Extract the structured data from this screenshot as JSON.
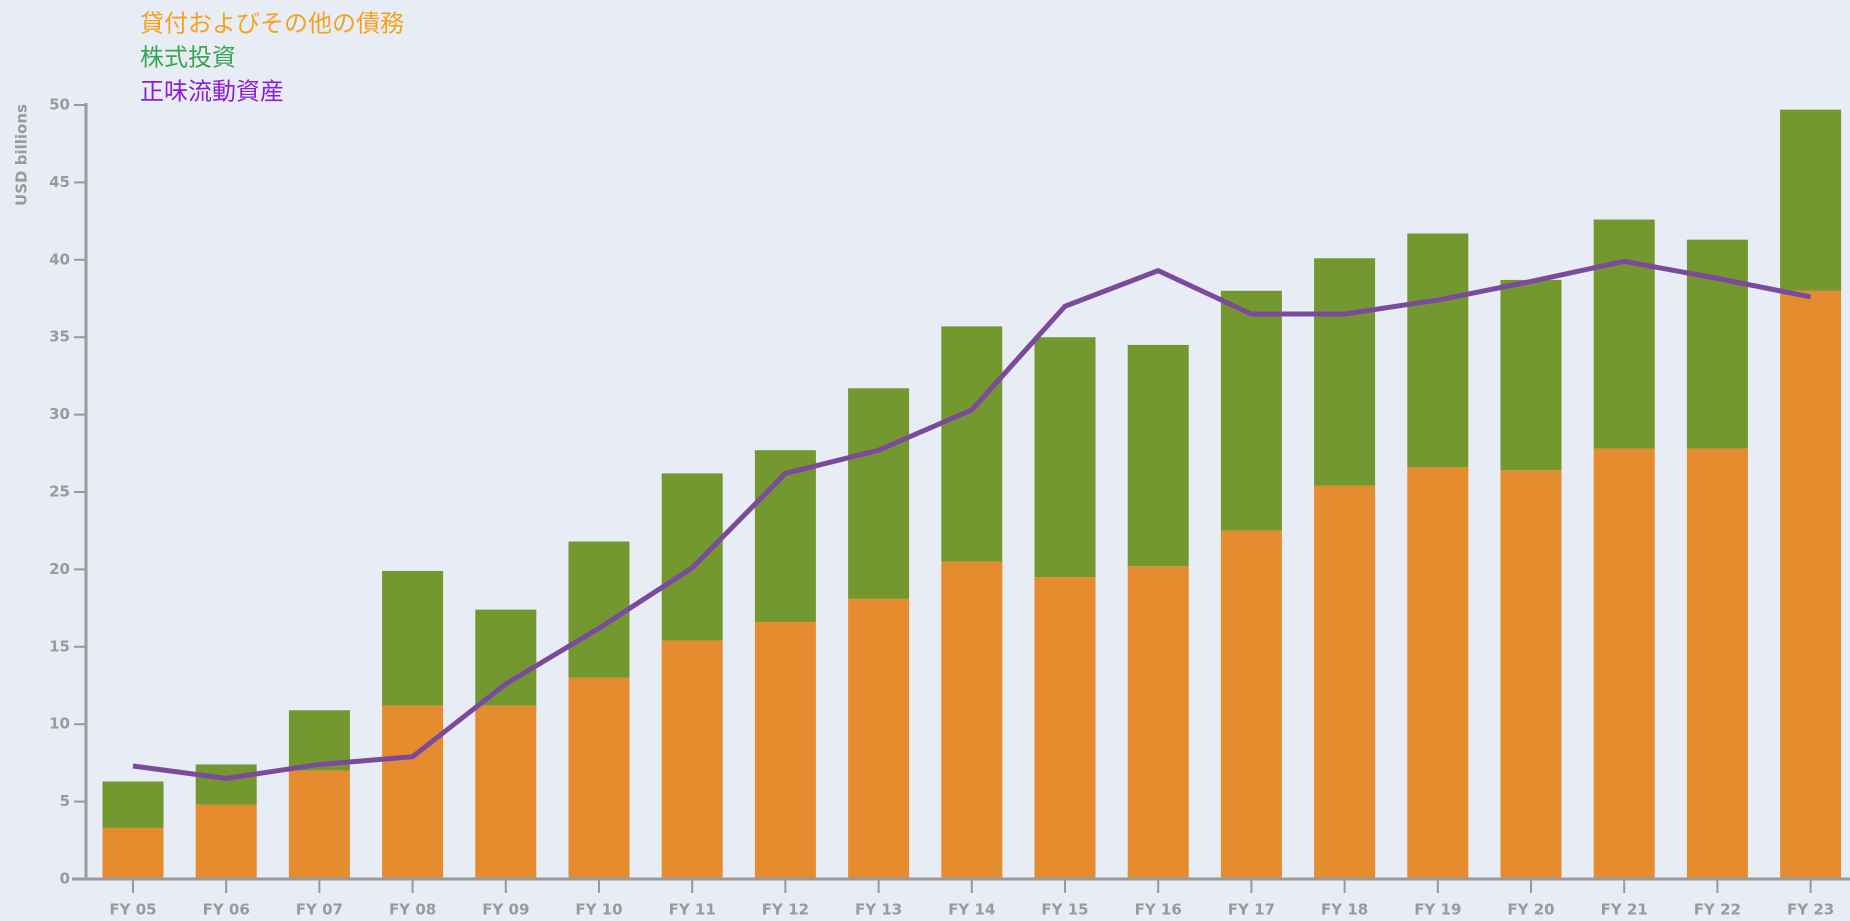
{
  "chart_data": {
    "type": "bar",
    "y_axis_label": "USD billions",
    "categories": [
      "FY 05",
      "FY 06",
      "FY 07",
      "FY 08",
      "FY 09",
      "FY 10",
      "FY 11",
      "FY 12",
      "FY 13",
      "FY 14",
      "FY 15",
      "FY 16",
      "FY 17",
      "FY 18",
      "FY 19",
      "FY 20",
      "FY 21",
      "FY 22",
      "FY 23"
    ],
    "stacked": true,
    "series": [
      {
        "name": "貸付およびその他の債務",
        "color": "#e58c2f",
        "legend_color": "#f5a21e",
        "type": "bar",
        "values": [
          3.3,
          4.8,
          7.0,
          11.2,
          11.2,
          13.0,
          15.4,
          16.6,
          18.1,
          20.5,
          19.5,
          20.2,
          22.5,
          25.4,
          26.6,
          26.4,
          27.8,
          27.8,
          38.0
        ]
      },
      {
        "name": "株式投資",
        "color": "#72982f",
        "legend_color": "#3aa655",
        "type": "bar",
        "values": [
          3.0,
          2.6,
          3.9,
          8.7,
          6.2,
          8.8,
          10.8,
          11.1,
          13.6,
          15.2,
          15.5,
          14.3,
          15.5,
          14.7,
          15.1,
          12.3,
          14.8,
          13.5,
          11.7
        ]
      },
      {
        "name": "正味流動資産",
        "color": "#7b4a9c",
        "legend_color": "#8b1fd1",
        "type": "line",
        "values": [
          7.3,
          6.5,
          7.4,
          7.9,
          12.6,
          16.2,
          20.1,
          26.2,
          27.7,
          30.3,
          37.0,
          39.3,
          36.5,
          36.5,
          37.4,
          38.6,
          39.9,
          38.8,
          37.6
        ]
      }
    ],
    "ylim": [
      0,
      50
    ],
    "yticks": [
      0,
      5,
      10,
      15,
      20,
      25,
      30,
      35,
      40,
      45,
      50
    ]
  }
}
